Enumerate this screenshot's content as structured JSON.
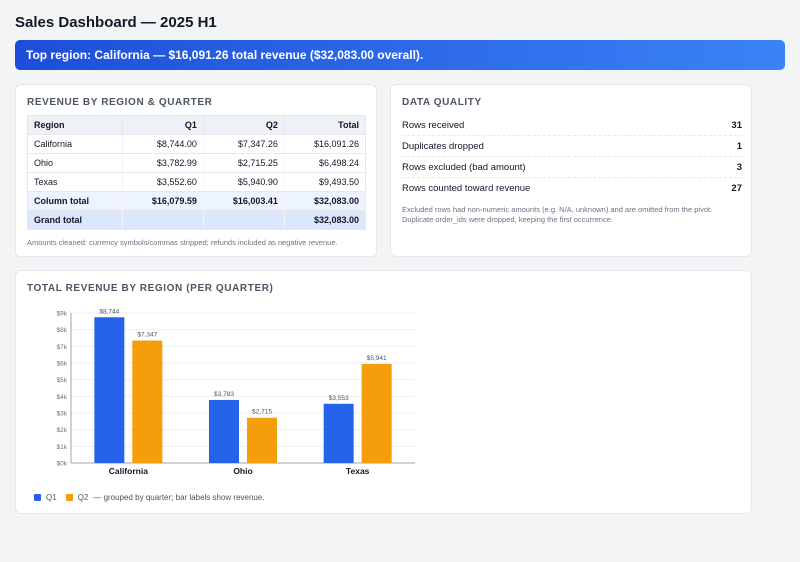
{
  "title": "Sales Dashboard — 2025 H1",
  "banner": "Top region: California — $16,091.26 total revenue ($32,083.00 overall).",
  "pivot": {
    "title": "REVENUE BY REGION & QUARTER",
    "headers": [
      "Region",
      "Q1",
      "Q2",
      "Total"
    ],
    "rows": [
      [
        "California",
        "$8,744.00",
        "$7,347.26",
        "$16,091.26"
      ],
      [
        "Ohio",
        "$3,782.99",
        "$2,715.25",
        "$6,498.24"
      ],
      [
        "Texas",
        "$3,552.60",
        "$5,940.90",
        "$9,493.50"
      ]
    ],
    "column_total": [
      "Column total",
      "$16,079.59",
      "$16,003.41",
      "$32,083.00"
    ],
    "grand_total": [
      "Grand total",
      "",
      "",
      "$32,083.00"
    ],
    "note": "Amounts cleaned: currency symbols/commas stripped; refunds included as negative revenue."
  },
  "data_quality": {
    "title": "DATA QUALITY",
    "rows": [
      {
        "label": "Rows received",
        "value": "31"
      },
      {
        "label": "Duplicates dropped",
        "value": "1"
      },
      {
        "label": "Rows excluded (bad amount)",
        "value": "3"
      },
      {
        "label": "Rows counted toward revenue",
        "value": "27"
      }
    ],
    "note": "Excluded rows had non-numeric amounts (e.g. N/A, unknown) and are omitted from the pivot. Duplicate order_ids were dropped, keeping the first occurrence."
  },
  "chart_card": {
    "title": "TOTAL REVENUE BY REGION (PER QUARTER)",
    "legend_note": "— grouped by quarter; bar labels show revenue."
  },
  "chart_data": {
    "type": "bar",
    "categories": [
      "California",
      "Ohio",
      "Texas"
    ],
    "series": [
      {
        "name": "Q1",
        "values": [
          8744.0,
          3782.99,
          3552.6
        ],
        "labels": [
          "$8,744",
          "$3,783",
          "$3,553"
        ],
        "color": "#2563eb"
      },
      {
        "name": "Q2",
        "values": [
          7347.26,
          2715.25,
          5940.9
        ],
        "labels": [
          "$7,347",
          "$2,715",
          "$5,941"
        ],
        "color": "#f59e0b"
      }
    ],
    "ylim": [
      0,
      9000
    ],
    "yticks": [
      0,
      1000,
      2000,
      3000,
      4000,
      5000,
      6000,
      7000,
      8000,
      9000
    ],
    "ytick_labels": [
      "$0k",
      "$1k",
      "$2k",
      "$3k",
      "$4k",
      "$5k",
      "$6k",
      "$7k",
      "$8k",
      "$9k"
    ],
    "grid": true,
    "legend": "bottom-left"
  }
}
